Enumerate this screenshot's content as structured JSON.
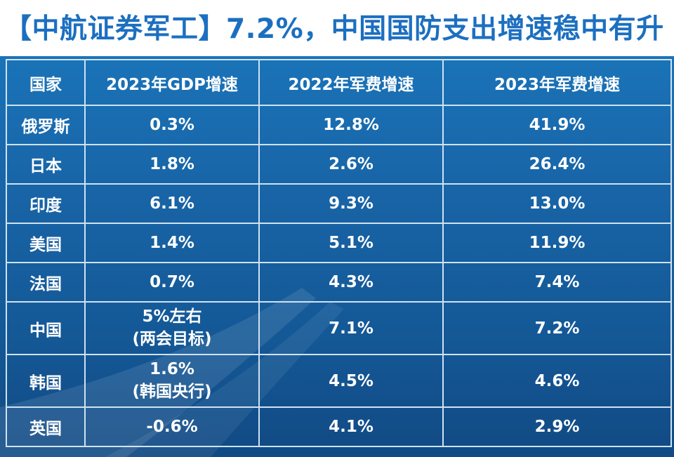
{
  "title": "【中航证券军工】7.2%，中国国防支出增速稳中有升",
  "colors": {
    "title": "#1c6fc0",
    "table_background": "#1864a6",
    "grid_lines": "#cfe2f3",
    "text": "#ffffff",
    "highlight": "#e8171c"
  },
  "table": {
    "headers": [
      "国家",
      "2023年GDP增速",
      "2022年军费增速",
      "2023年军费增速"
    ],
    "rows": [
      {
        "country": "俄罗斯",
        "gdp_2023": "0.3%",
        "gdp_note": "",
        "mil_2022": "12.8%",
        "mil_2023": "41.9%"
      },
      {
        "country": "日本",
        "gdp_2023": "1.8%",
        "gdp_note": "",
        "mil_2022": "2.6%",
        "mil_2023": "26.4%"
      },
      {
        "country": "印度",
        "gdp_2023": "6.1%",
        "gdp_note": "",
        "mil_2022": "9.3%",
        "mil_2023": "13.0%"
      },
      {
        "country": "美国",
        "gdp_2023": "1.4%",
        "gdp_note": "",
        "mil_2022": "5.1%",
        "mil_2023": "11.9%"
      },
      {
        "country": "法国",
        "gdp_2023": "0.7%",
        "gdp_note": "",
        "mil_2022": "4.3%",
        "mil_2023": "7.4%"
      },
      {
        "country": "中国",
        "gdp_2023": "5%左右",
        "gdp_note": "(两会目标)",
        "mil_2022": "7.1%",
        "mil_2023": "7.2%"
      },
      {
        "country": "韩国",
        "gdp_2023": "1.6%",
        "gdp_note": "(韩国央行)",
        "mil_2022": "4.5%",
        "mil_2023": "4.6%"
      },
      {
        "country": "英国",
        "gdp_2023": "-0.6%",
        "gdp_note": "",
        "mil_2022": "4.1%",
        "mil_2023": "2.9%"
      }
    ]
  }
}
